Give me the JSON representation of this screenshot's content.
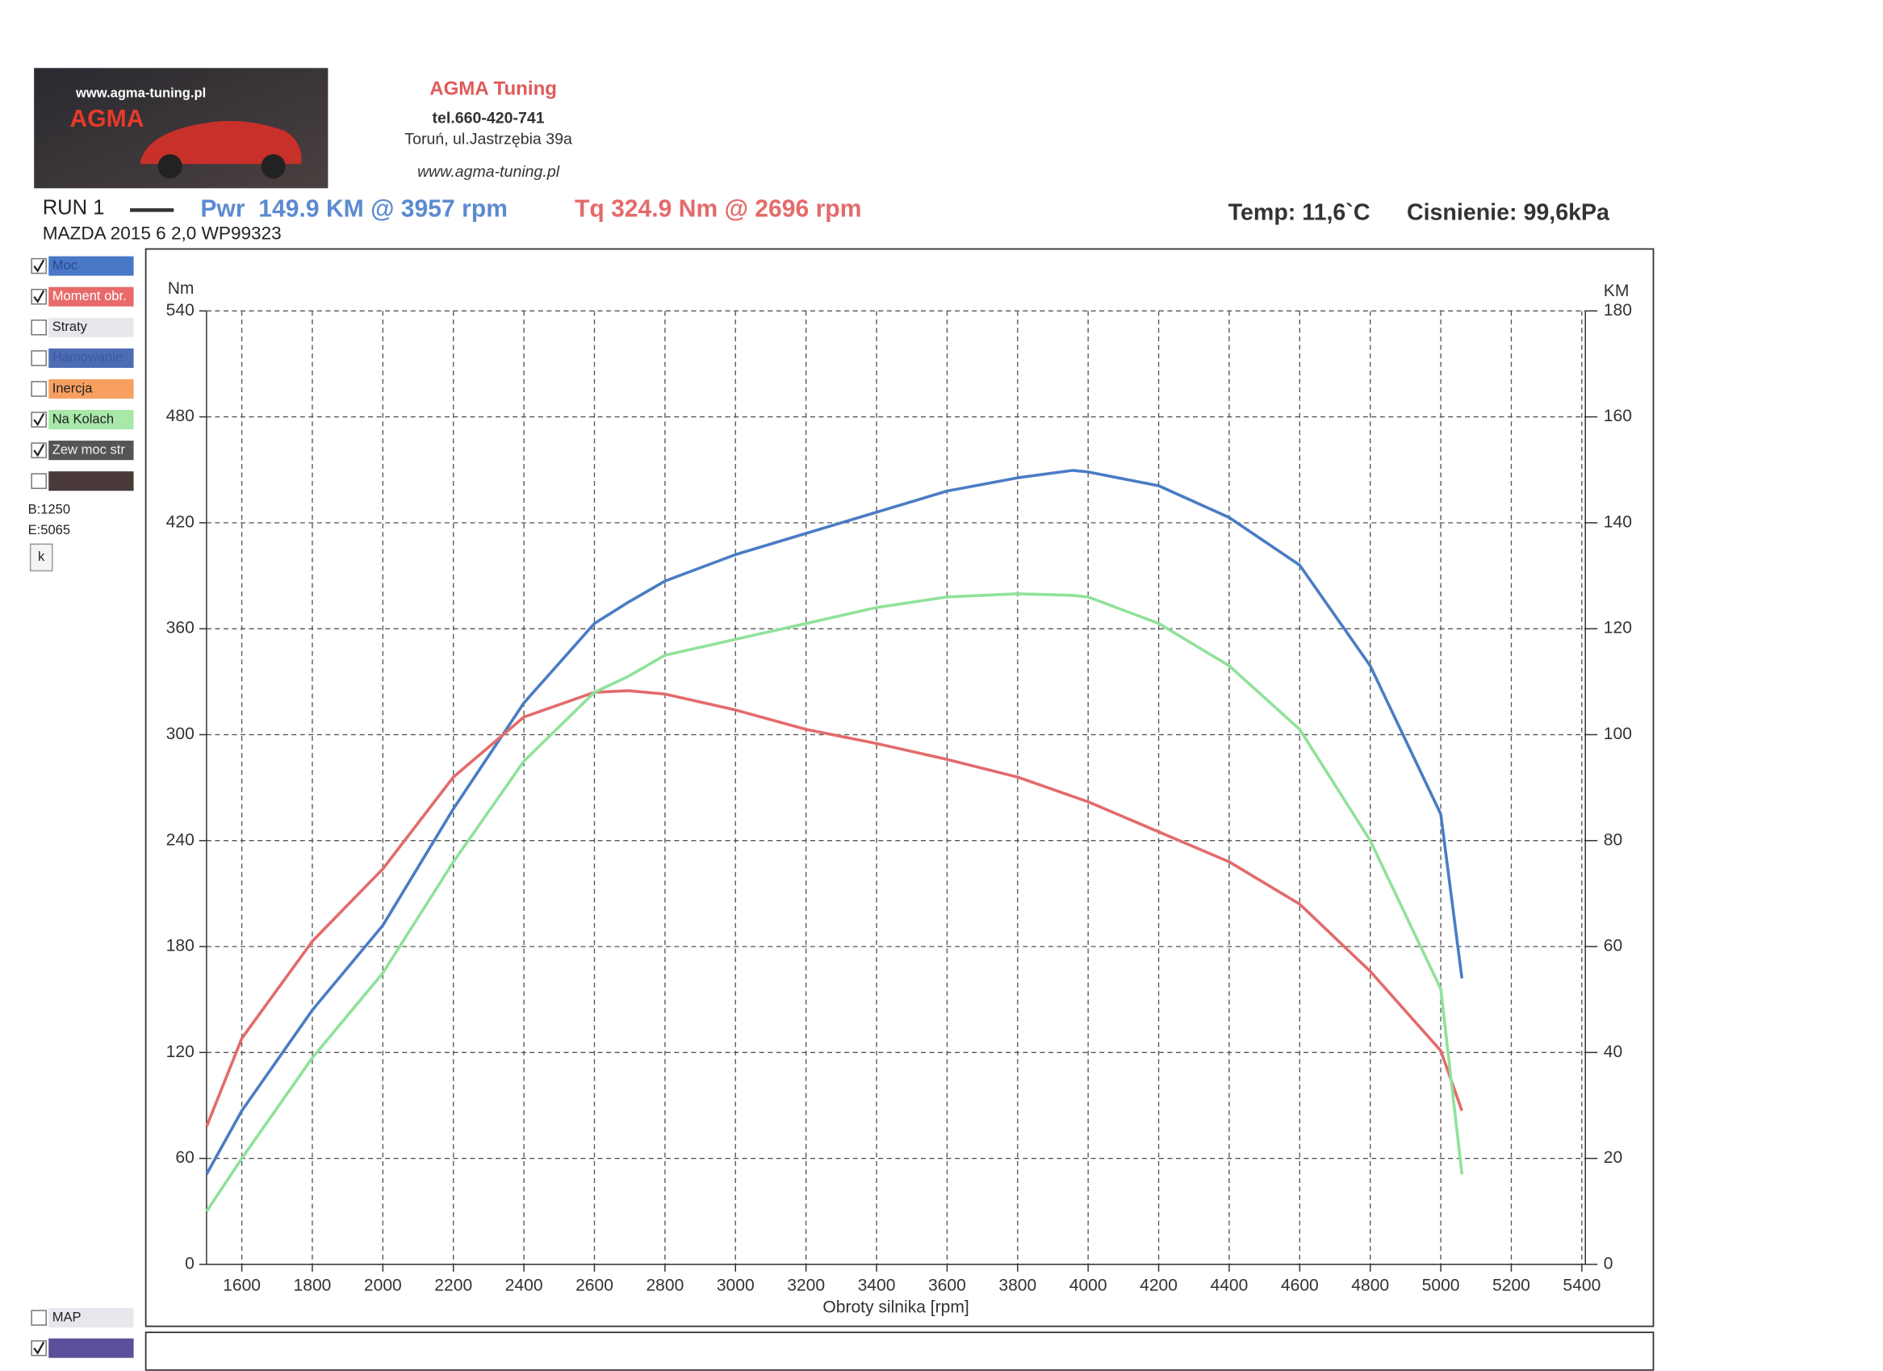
{
  "header": {
    "logo_url": "www.agma-tuning.pl",
    "logo_text": "AGMA",
    "company": "AGMA Tuning",
    "phone": "tel.660-420-741",
    "address": "Toruń, ul.Jastrzębia 39a",
    "website": "www.agma-tuning.pl"
  },
  "run": {
    "name": "RUN 1",
    "power": "Pwr  149.9 KM @ 3957 rpm",
    "torque": "Tq 324.9 Nm @ 2696 rpm",
    "vehicle": "MAZDA 2015 6 2,0 WP99323",
    "temp": "Temp: 11,6`C",
    "pressure": "Cisnienie: 99,6kPa"
  },
  "sidebar": {
    "options": [
      "Straty",
      "Hamowanie",
      "Inercja",
      "Zew moc str",
      "MAP"
    ],
    "begin": "B:1250",
    "end": "E:5065",
    "button": "k"
  },
  "chart_data": {
    "type": "line",
    "x": [
      1500,
      1600,
      1800,
      2000,
      2200,
      2400,
      2600,
      2696,
      2800,
      3000,
      3200,
      3400,
      3600,
      3800,
      3957,
      4000,
      4200,
      4400,
      4600,
      4800,
      5000,
      5060
    ],
    "xlim": [
      1500,
      5410
    ],
    "xticks": [
      1600,
      1800,
      2000,
      2200,
      2400,
      2600,
      2800,
      3000,
      3200,
      3400,
      3600,
      3800,
      4000,
      4200,
      4400,
      4600,
      4800,
      5000,
      5200,
      5400
    ],
    "ylim": [
      0,
      540
    ],
    "yticks": [
      0,
      60,
      120,
      180,
      240,
      300,
      360,
      420,
      480,
      540
    ],
    "y2lim": [
      0,
      180
    ],
    "y2ticks": [
      0,
      20,
      40,
      60,
      80,
      100,
      120,
      140,
      160,
      180
    ],
    "x_label": "Obroty silnika [rpm]",
    "y_label": "Nm",
    "y2_label": "KM",
    "grid": true,
    "series": [
      {
        "name": "Moc",
        "color": "#4a7cc4",
        "axis": "y2",
        "values": [
          17,
          29,
          48,
          64,
          86,
          106,
          121,
          125,
          129,
          134,
          138,
          142,
          146,
          148.5,
          149.9,
          149.6,
          147,
          141,
          132,
          113,
          85,
          54
        ]
      },
      {
        "name": "Moment obr.",
        "color": "#e36b6b",
        "values": [
          78,
          128,
          183,
          224,
          276,
          310,
          324,
          324.9,
          323,
          314,
          303,
          295,
          286,
          276,
          265,
          262,
          245,
          228,
          204,
          166,
          121,
          87
        ]
      },
      {
        "name": "Na Kolach",
        "color": "#8fe29a",
        "axis": "y2",
        "values": [
          10,
          20,
          39,
          55,
          76,
          95,
          108,
          111,
          115,
          118,
          121,
          124,
          126,
          126.6,
          126.3,
          126,
          121,
          113,
          101,
          80,
          52,
          17
        ]
      }
    ]
  }
}
